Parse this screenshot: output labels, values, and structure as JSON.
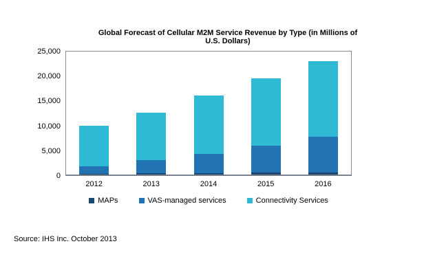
{
  "chart_data": {
    "type": "bar",
    "stacked": true,
    "title": "Global Forecast of Cellular M2M Service Revenue by Type (in Millions of U.S. Dollars)",
    "categories": [
      "2012",
      "2013",
      "2014",
      "2015",
      "2016"
    ],
    "series": [
      {
        "name": "MAPs",
        "color": "#1c4874",
        "values": [
          200,
          250,
          300,
          350,
          400
        ]
      },
      {
        "name": "VAS-managed services",
        "color": "#2173b4",
        "values": [
          1500,
          2650,
          3900,
          5450,
          7200
        ]
      },
      {
        "name": "Connectivity Services",
        "color": "#2fb9d5",
        "values": [
          8100,
          9500,
          11700,
          13500,
          15200
        ]
      }
    ],
    "totals": [
      9800,
      12400,
      15900,
      19300,
      22800
    ],
    "ylim": [
      0,
      25000
    ],
    "ytick_step": 5000,
    "ytick_labels": [
      "0",
      "5,000",
      "10,000",
      "15,000",
      "20,000",
      "25,000"
    ],
    "grid": false,
    "legend_position": "bottom",
    "xlabel": "",
    "ylabel": ""
  },
  "source_note": "Source: IHS Inc. October 2013"
}
